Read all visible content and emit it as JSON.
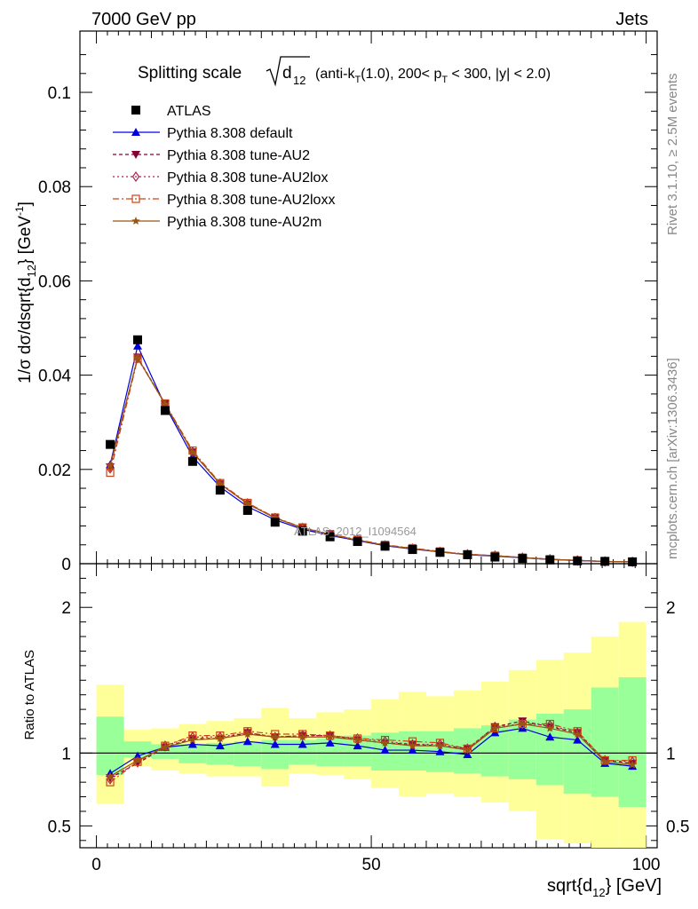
{
  "header": {
    "left": "7000 GeV pp",
    "right": "Jets"
  },
  "title": {
    "prefix": "Splitting scale",
    "sqrt_sub": "12",
    "rest": "(anti-k",
    "rest_sub": "T",
    "rest2": "(1.0), 200< p",
    "rest2_sub": "T",
    "rest3": " < 300, |y| < 2.0)"
  },
  "side_labels": {
    "rivet": "Rivet 3.1.10, ≥ 2.5M events",
    "mcplots": "mcplots.cern.ch [arXiv:1306.3436]"
  },
  "watermark": "ATLAS_2012_I1094564",
  "axes": {
    "top_ylabel": "1/σ dσ/dsqrt{d",
    "top_ylabel_sub": "12",
    "top_ylabel_tail": "} [GeV",
    "top_ylabel_sup": "-1",
    "top_ylabel_end": "]",
    "bottom_ylabel": "Ratio to ATLAS",
    "xlabel": "sqrt{d",
    "xlabel_sub": "12",
    "xlabel_tail": "} [GeV]"
  },
  "legend": [
    {
      "label": "ATLAS"
    },
    {
      "label": "Pythia 8.308 default"
    },
    {
      "label": "Pythia 8.308 tune-AU2"
    },
    {
      "label": "Pythia 8.308 tune-AU2lox"
    },
    {
      "label": "Pythia 8.308 tune-AU2loxx"
    },
    {
      "label": "Pythia 8.308 tune-AU2m"
    }
  ],
  "chart_data": {
    "type": "scatter",
    "x": [
      2.5,
      7.5,
      12.5,
      17.5,
      22.5,
      27.5,
      32.5,
      37.5,
      42.5,
      47.5,
      52.5,
      57.5,
      62.5,
      67.5,
      72.5,
      77.5,
      82.5,
      87.5,
      92.5,
      97.5
    ],
    "xlim": [
      -3,
      102
    ],
    "top": {
      "ylim": [
        0,
        0.113
      ],
      "yticks": [
        0,
        0.02,
        0.04,
        0.06,
        0.08,
        0.1
      ],
      "yticklabels": [
        "0",
        "0.02",
        "0.04",
        "0.06",
        "0.08",
        "0.1"
      ],
      "xticks": [
        0,
        50,
        100
      ]
    },
    "bottom": {
      "ylim": [
        0.35,
        2.3
      ],
      "yticks": [
        0.5,
        1,
        2
      ],
      "yticklabels": [
        "0.5",
        "1",
        "2"
      ],
      "xticks": [
        0,
        50,
        100
      ],
      "xticklabels": [
        "0",
        "50",
        "100"
      ]
    },
    "series": [
      {
        "name": "ATLAS",
        "color": "#000000",
        "marker": "square",
        "values": [
          0.0253,
          0.0475,
          0.0325,
          0.0217,
          0.0156,
          0.0113,
          0.0088,
          0.0069,
          0.0057,
          0.0047,
          0.0037,
          0.003,
          0.0024,
          0.0019,
          0.0014,
          0.0011,
          0.0008,
          0.0006,
          0.0005,
          0.0004
        ]
      },
      {
        "name": "Pythia 8.308 default",
        "color": "#0000dd",
        "marker": "triangle-up",
        "dash": "",
        "values": [
          0.021,
          0.0462,
          0.0335,
          0.0227,
          0.0163,
          0.0121,
          0.0093,
          0.0073,
          0.006,
          0.0049,
          0.0038,
          0.0031,
          0.0025,
          0.0019,
          0.0016,
          0.00125,
          0.0009,
          0.00065,
          0.00047,
          0.00037
        ],
        "ratio": [
          0.86,
          0.98,
          1.04,
          1.06,
          1.05,
          1.08,
          1.06,
          1.06,
          1.07,
          1.05,
          1.02,
          1.02,
          1.01,
          0.99,
          1.14,
          1.17,
          1.11,
          1.09,
          0.93,
          0.91
        ]
      },
      {
        "name": "Pythia 8.308 tune-AU2",
        "color": "#880033",
        "marker": "triangle-down",
        "dash": "4,3",
        "values": [
          0.0205,
          0.0438,
          0.0339,
          0.0237,
          0.0169,
          0.0127,
          0.0097,
          0.0076,
          0.0062,
          0.005,
          0.0039,
          0.0032,
          0.0025,
          0.002,
          0.0017,
          0.0013,
          0.00095,
          0.0007,
          0.00048,
          0.00038
        ],
        "ratio": [
          0.83,
          0.93,
          1.04,
          1.1,
          1.1,
          1.14,
          1.11,
          1.12,
          1.12,
          1.09,
          1.07,
          1.06,
          1.05,
          1.03,
          1.18,
          1.22,
          1.18,
          1.14,
          0.95,
          0.93
        ]
      },
      {
        "name": "Pythia 8.308 tune-AU2lox",
        "color": "#aa2255",
        "marker": "diamond",
        "dash": "2,3",
        "values": [
          0.0202,
          0.0436,
          0.0338,
          0.0237,
          0.017,
          0.0128,
          0.0097,
          0.0076,
          0.0062,
          0.005,
          0.0039,
          0.0032,
          0.0025,
          0.002,
          0.0017,
          0.0013,
          0.00095,
          0.0007,
          0.00048,
          0.00038
        ],
        "ratio": [
          0.82,
          0.94,
          1.05,
          1.11,
          1.11,
          1.14,
          1.11,
          1.12,
          1.12,
          1.1,
          1.08,
          1.06,
          1.06,
          1.03,
          1.18,
          1.2,
          1.19,
          1.14,
          0.95,
          0.94
        ]
      },
      {
        "name": "Pythia 8.308 tune-AU2loxx",
        "color": "#cc4411",
        "marker": "open-square",
        "dash": "7,3,2,3",
        "values": [
          0.0193,
          0.0435,
          0.034,
          0.024,
          0.0171,
          0.0129,
          0.0098,
          0.0077,
          0.0063,
          0.0051,
          0.004,
          0.0033,
          0.0026,
          0.002,
          0.0017,
          0.0013,
          0.00095,
          0.0007,
          0.00048,
          0.00038
        ],
        "ratio": [
          0.8,
          0.94,
          1.05,
          1.12,
          1.12,
          1.15,
          1.13,
          1.13,
          1.12,
          1.1,
          1.09,
          1.08,
          1.07,
          1.03,
          1.17,
          1.2,
          1.2,
          1.15,
          0.95,
          0.95
        ]
      },
      {
        "name": "Pythia 8.308 tune-AU2m",
        "color": "#995511",
        "marker": "star",
        "dash": "",
        "values": [
          0.0208,
          0.0437,
          0.0338,
          0.0236,
          0.0169,
          0.0127,
          0.0097,
          0.0076,
          0.0062,
          0.005,
          0.0039,
          0.0032,
          0.0025,
          0.0019,
          0.0017,
          0.0013,
          0.0009,
          0.0007,
          0.00048,
          0.00038
        ],
        "ratio": [
          0.84,
          0.95,
          1.04,
          1.09,
          1.1,
          1.13,
          1.11,
          1.11,
          1.11,
          1.09,
          1.07,
          1.05,
          1.05,
          1.02,
          1.17,
          1.2,
          1.17,
          1.13,
          0.94,
          0.92
        ]
      }
    ],
    "bands": {
      "inner_color": "#99ff99",
      "outer_color": "#ffff99",
      "inner": [
        [
          0.85,
          1.25
        ],
        [
          0.97,
          1.08
        ],
        [
          0.96,
          1.06
        ],
        [
          0.93,
          1.06
        ],
        [
          0.92,
          1.07
        ],
        [
          0.91,
          1.08
        ],
        [
          0.89,
          1.09
        ],
        [
          0.92,
          1.09
        ],
        [
          0.91,
          1.1
        ],
        [
          0.91,
          1.12
        ],
        [
          0.88,
          1.14
        ],
        [
          0.88,
          1.15
        ],
        [
          0.87,
          1.15
        ],
        [
          0.86,
          1.17
        ],
        [
          0.84,
          1.19
        ],
        [
          0.82,
          1.23
        ],
        [
          0.78,
          1.27
        ],
        [
          0.72,
          1.3
        ],
        [
          0.7,
          1.45
        ],
        [
          0.63,
          1.52
        ]
      ],
      "outer": [
        [
          0.65,
          1.47
        ],
        [
          0.91,
          1.16
        ],
        [
          0.88,
          1.17
        ],
        [
          0.86,
          1.2
        ],
        [
          0.84,
          1.22
        ],
        [
          0.84,
          1.24
        ],
        [
          0.77,
          1.31
        ],
        [
          0.86,
          1.24
        ],
        [
          0.85,
          1.28
        ],
        [
          0.82,
          1.3
        ],
        [
          0.76,
          1.37
        ],
        [
          0.7,
          1.42
        ],
        [
          0.72,
          1.39
        ],
        [
          0.7,
          1.43
        ],
        [
          0.66,
          1.49
        ],
        [
          0.6,
          1.57
        ],
        [
          0.41,
          1.64
        ],
        [
          0.38,
          1.69
        ],
        [
          0.3,
          1.8
        ],
        [
          0.28,
          1.9
        ]
      ]
    }
  }
}
